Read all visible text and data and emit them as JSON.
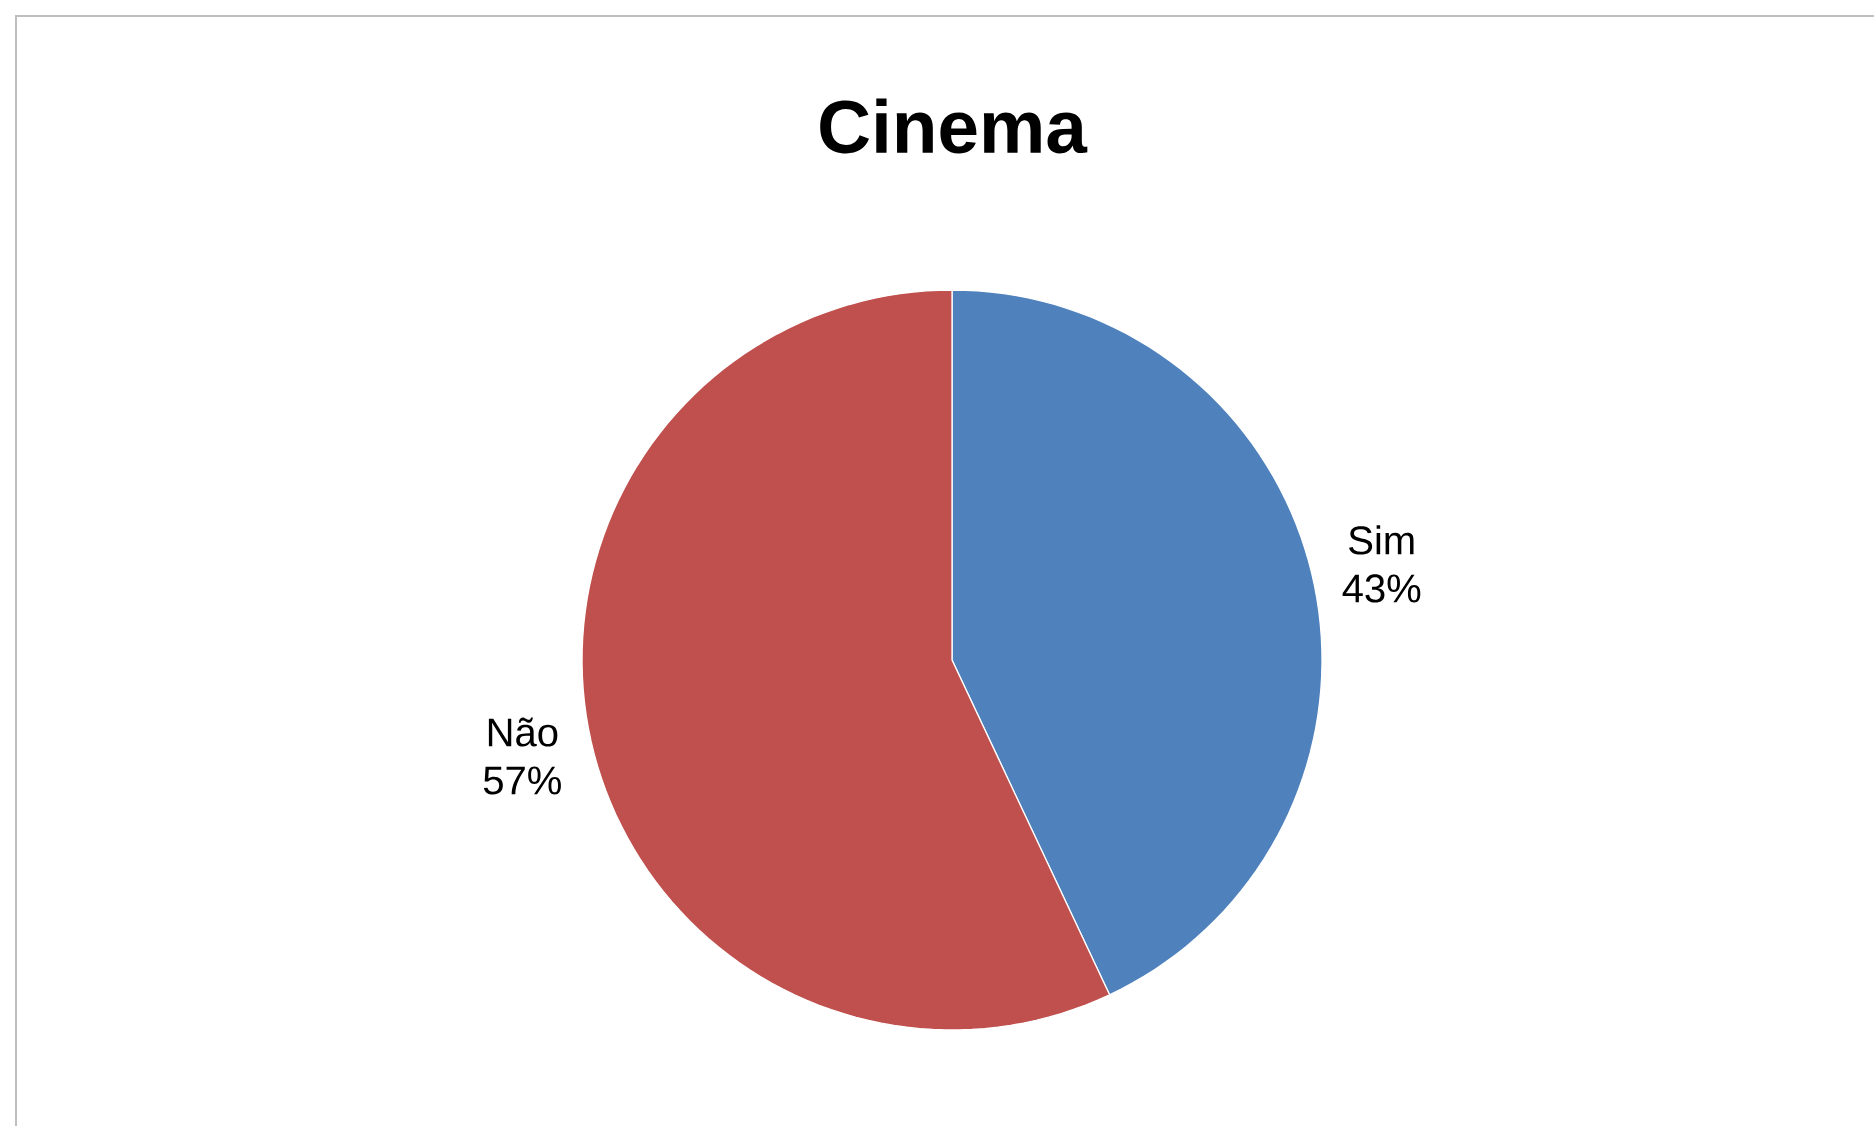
{
  "chart_data": {
    "type": "pie",
    "title": "Cinema",
    "categories": [
      "Sim",
      "Não"
    ],
    "values": [
      43,
      57
    ],
    "colors": [
      "#4f81bd",
      "#c0504d"
    ],
    "value_labels": [
      "43%",
      "57%"
    ]
  }
}
